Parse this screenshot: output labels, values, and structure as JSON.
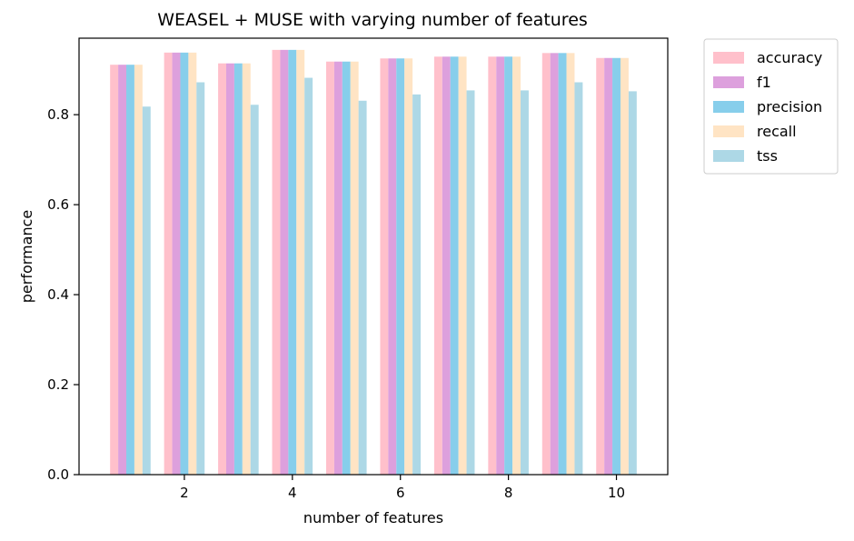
{
  "chart_data": {
    "type": "bar",
    "title": "WEASEL + MUSE with varying number of features",
    "xlabel": "number of features",
    "ylabel": "performance",
    "categories": [
      1,
      2,
      3,
      4,
      5,
      6,
      7,
      8,
      9,
      10
    ],
    "xticks": [
      2,
      4,
      6,
      8,
      10
    ],
    "xlim": [
      0.05,
      10.95
    ],
    "ylim": [
      0,
      0.97
    ],
    "yticks": [
      "0.0",
      "0.2",
      "0.4",
      "0.6",
      "0.8"
    ],
    "grid": false,
    "legend_position": "outside-top-right",
    "series": [
      {
        "name": "accuracy",
        "color": "#ffc0cb",
        "values": [
          0.911,
          0.938,
          0.914,
          0.944,
          0.918,
          0.925,
          0.929,
          0.929,
          0.937,
          0.926
        ]
      },
      {
        "name": "f1",
        "color": "#dda0dd",
        "values": [
          0.911,
          0.938,
          0.914,
          0.944,
          0.918,
          0.925,
          0.929,
          0.929,
          0.937,
          0.926
        ]
      },
      {
        "name": "precision",
        "color": "#87ceeb",
        "values": [
          0.911,
          0.938,
          0.914,
          0.944,
          0.918,
          0.925,
          0.929,
          0.929,
          0.937,
          0.926
        ]
      },
      {
        "name": "recall",
        "color": "#ffe4c4",
        "values": [
          0.911,
          0.938,
          0.914,
          0.944,
          0.918,
          0.925,
          0.929,
          0.929,
          0.937,
          0.926
        ]
      },
      {
        "name": "tss",
        "color": "#add8e6",
        "values": [
          0.818,
          0.872,
          0.822,
          0.882,
          0.831,
          0.845,
          0.854,
          0.854,
          0.872,
          0.852
        ]
      }
    ]
  }
}
